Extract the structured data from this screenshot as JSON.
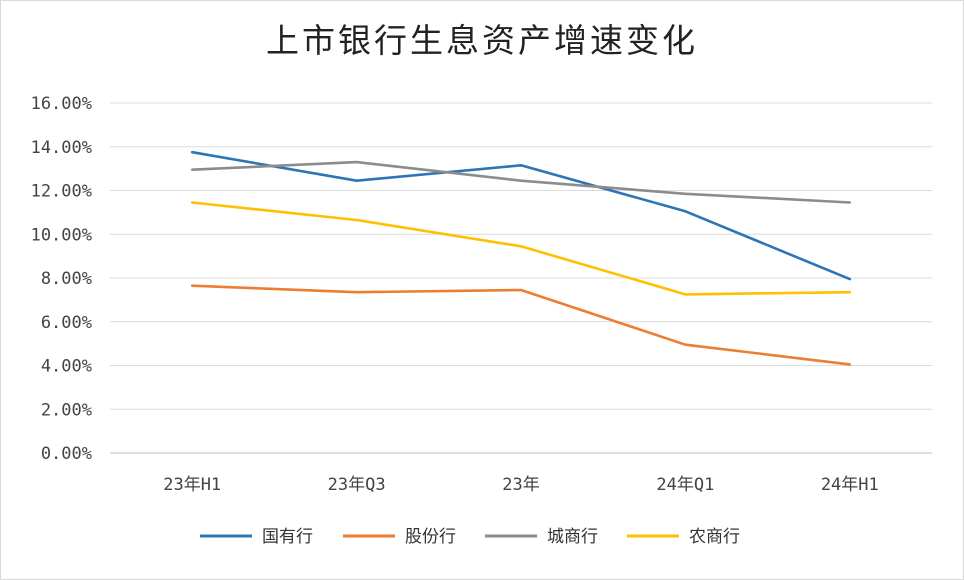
{
  "chart_data": {
    "type": "line",
    "title": "上市银行生息资产增速变化",
    "categories": [
      "23年H1",
      "23年Q3",
      "23年",
      "24年Q1",
      "24年H1"
    ],
    "y_tick_labels": [
      "0.00%",
      "2.00%",
      "4.00%",
      "6.00%",
      "8.00%",
      "10.00%",
      "12.00%",
      "14.00%",
      "16.00%"
    ],
    "ylim": [
      0,
      16
    ],
    "grid": true,
    "legend_position": "bottom",
    "series": [
      {
        "name": "国有行",
        "color": "#2e75b6",
        "values": [
          13.75,
          12.45,
          13.15,
          11.05,
          7.95
        ]
      },
      {
        "name": "股份行",
        "color": "#ed7d31",
        "values": [
          7.65,
          7.35,
          7.45,
          4.95,
          4.05
        ]
      },
      {
        "name": "城商行",
        "color": "#8c8c8c",
        "values": [
          12.95,
          13.3,
          12.45,
          11.85,
          11.45
        ]
      },
      {
        "name": "农商行",
        "color": "#ffc000",
        "values": [
          11.45,
          10.65,
          9.45,
          7.25,
          7.35
        ]
      }
    ]
  }
}
